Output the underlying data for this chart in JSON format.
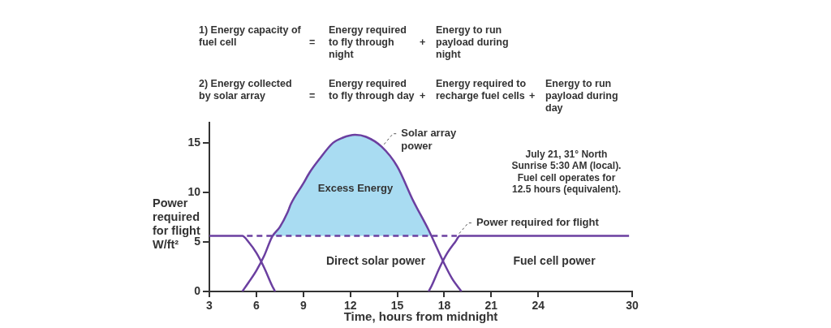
{
  "chart_data": {
    "type": "line",
    "xlabel": "Time, hours from midnight",
    "ylabel": "Power required for flight W/ft²",
    "xlim": [
      3,
      30
    ],
    "xticks": [
      3,
      6,
      9,
      12,
      15,
      18,
      21,
      24,
      30
    ],
    "ylim": [
      0,
      17
    ],
    "yticks": [
      0,
      5,
      10,
      15
    ],
    "grid": false,
    "legend": false,
    "marker": "none",
    "series": [
      {
        "type": "area",
        "color": "#a9dcf2",
        "x": [
          7.05,
          7.5,
          8,
          8.2,
          9,
          9.4,
          10,
          10.9,
          11.5,
          12.3,
          13,
          14,
          15,
          16,
          17,
          17.2
        ],
        "values": [
          5.6,
          6.5,
          8.0,
          8.8,
          10.9,
          12.0,
          13.3,
          15.0,
          15.5,
          15.8,
          15.6,
          14.6,
          12.6,
          9.2,
          6.2,
          5.6
        ]
      },
      {
        "name": "Solar array power",
        "color": "#6b3fa0",
        "x": [
          5.1,
          5.5,
          6,
          6.5,
          7,
          7.5,
          8,
          8.2,
          9,
          9.4,
          10,
          10.9,
          11.5,
          12.3,
          13,
          14,
          15,
          16,
          17,
          17.5,
          18,
          18.5,
          19.1
        ],
        "values": [
          0,
          0.9,
          2.1,
          3.6,
          5.5,
          6.5,
          8.0,
          8.8,
          10.9,
          12.0,
          13.3,
          15.0,
          15.5,
          15.8,
          15.6,
          14.6,
          12.6,
          9.2,
          6.2,
          4.5,
          2.8,
          1.3,
          0
        ]
      },
      {
        "color": "#6b3fa0",
        "x": [
          3,
          5.1,
          5.5,
          6,
          6.5,
          7,
          7.2
        ],
        "values": [
          5.6,
          5.6,
          5.0,
          3.9,
          2.4,
          0.6,
          0
        ]
      },
      {
        "color": "#6b3fa0",
        "x": [
          17.0,
          17.2,
          17.7,
          18.2,
          18.7,
          19.0,
          29.8
        ],
        "values": [
          0,
          0.6,
          2.4,
          3.9,
          5.0,
          5.6,
          5.6
        ]
      },
      {
        "name": "Power required for flight",
        "color": "#6b3fa0",
        "line_style": "dashed",
        "x": [
          5.4,
          18.8
        ],
        "values": [
          5.6,
          5.6
        ]
      }
    ],
    "annotations": [
      "1) Energy capacity of fuel cell = Energy required to fly through night + Energy to run payload during night",
      "2) Energy collected by solar array = Energy required to fly through day + Energy required to recharge fuel cells + Energy to run payload during day",
      "Excess Energy",
      "Direct solar power",
      "Fuel cell power",
      "July 21, 31° North\nSunrise 5:30 AM (local).\nFuel cell operates for\n12.5 hours (equivalent)."
    ]
  }
}
